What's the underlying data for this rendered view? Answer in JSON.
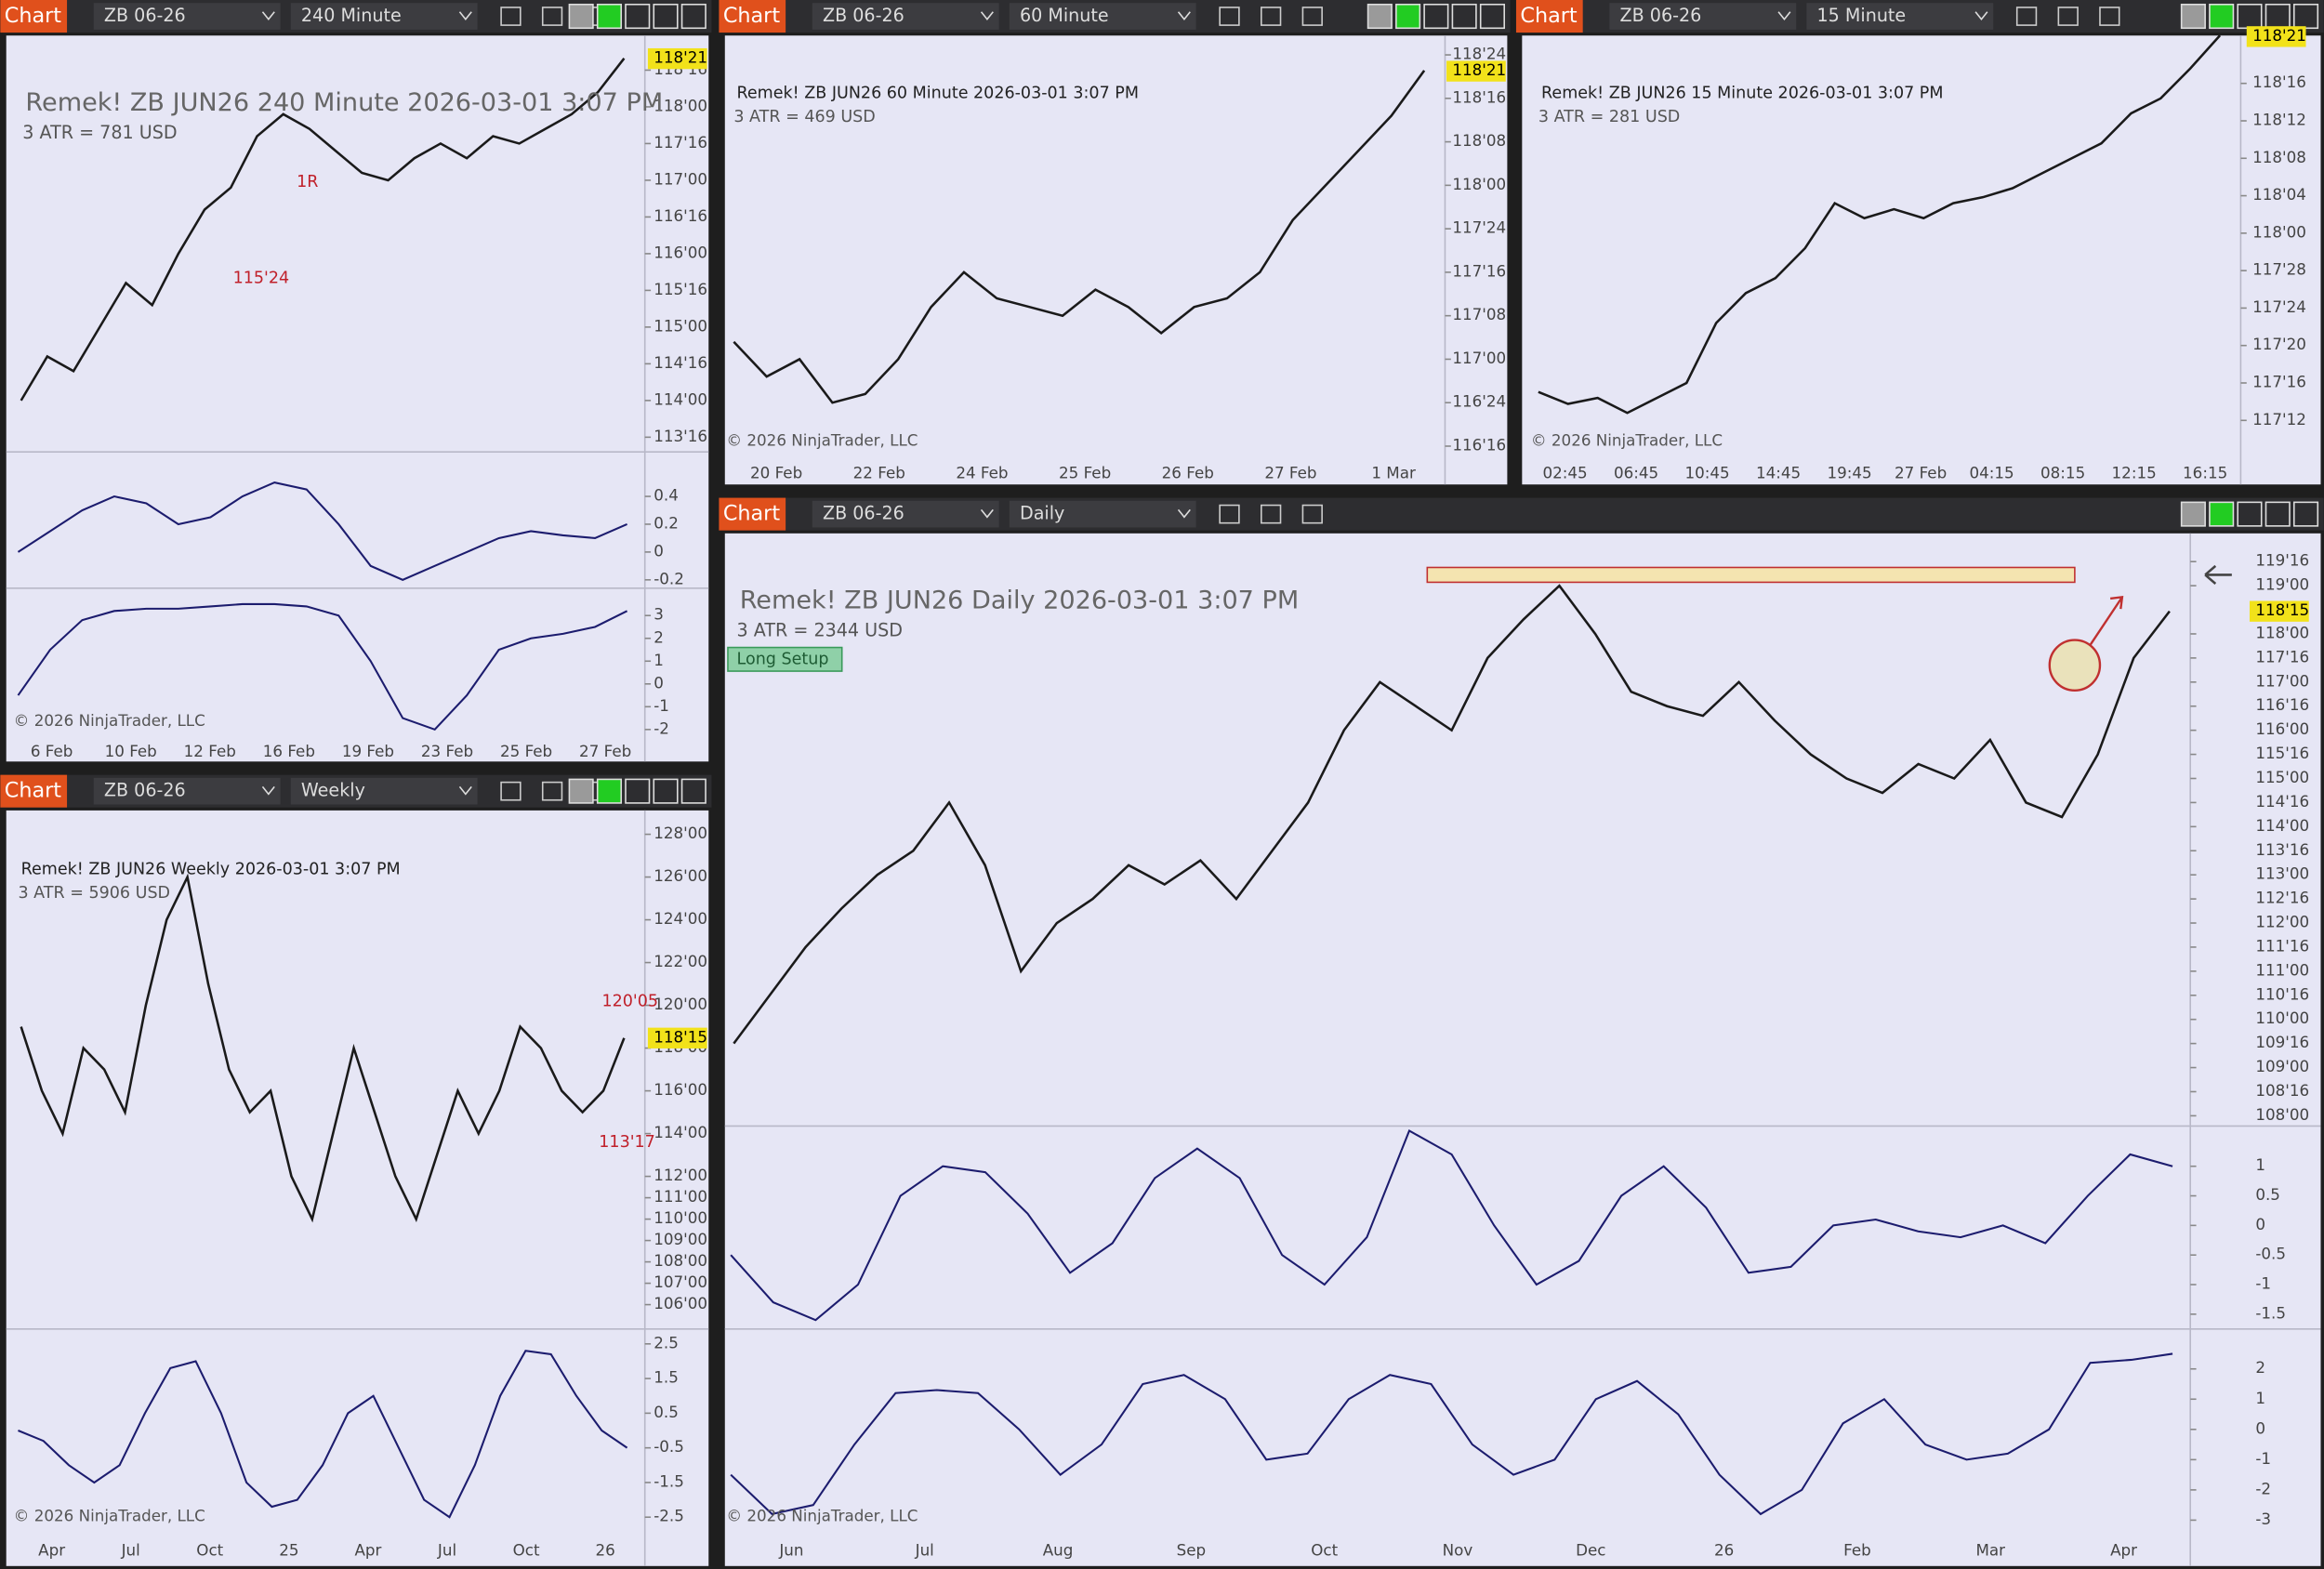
{
  "windows": [
    {
      "toolbar": {
        "button": "Chart",
        "instrument": "ZB 06-26",
        "interval": "240 Minute"
      },
      "title": "Remek!  ZB JUN26  240 Minute  2026-03-01 3:07 PM",
      "atr": "3 ATR = 781 USD",
      "ylim": [
        113.3,
        118.85
      ],
      "price_ticks": [
        {
          "value": 118.5,
          "label": "118'16"
        },
        {
          "value": 118.0,
          "label": "118'00"
        },
        {
          "value": 117.5,
          "label": "117'16"
        },
        {
          "value": 117.0,
          "label": "117'00"
        },
        {
          "value": 116.5,
          "label": "116'16"
        },
        {
          "value": 116.0,
          "label": "116'00"
        },
        {
          "value": 115.5,
          "label": "115'16"
        },
        {
          "value": 115.0,
          "label": "115'00"
        },
        {
          "value": 114.5,
          "label": "114'16"
        },
        {
          "value": 114.0,
          "label": "114'00"
        },
        {
          "value": 113.5,
          "label": "113'16"
        }
      ],
      "last_price": {
        "value": 118.65625,
        "label": "118'21"
      },
      "closes": [
        114.0,
        114.6,
        114.4,
        115.0,
        115.6,
        115.3,
        116.0,
        116.6,
        116.9,
        117.6,
        117.9,
        117.7,
        117.4,
        117.1,
        117.0,
        117.3,
        117.5,
        117.3,
        117.6,
        117.5,
        117.7,
        117.9,
        118.2,
        118.66
      ],
      "annotations": [
        "1R",
        "115'24"
      ],
      "panes": [
        {
          "ylim": [
            -0.26,
            0.72
          ],
          "yticks": [
            0.4,
            0.2,
            0,
            -0.2
          ],
          "values": [
            0.0,
            0.15,
            0.3,
            0.4,
            0.35,
            0.2,
            0.25,
            0.4,
            0.5,
            0.45,
            0.2,
            -0.1,
            -0.2,
            -0.1,
            0.0,
            0.1,
            0.15,
            0.12,
            0.1,
            0.2
          ]
        },
        {
          "ylim": [
            -2.3,
            4.2
          ],
          "yticks": [
            3,
            2,
            1,
            0,
            -1,
            -2
          ],
          "values": [
            -0.5,
            1.5,
            2.8,
            3.2,
            3.3,
            3.3,
            3.4,
            3.5,
            3.5,
            3.4,
            3.0,
            1.0,
            -1.5,
            -2.0,
            -0.5,
            1.5,
            2.0,
            2.2,
            2.5,
            3.2
          ]
        }
      ],
      "x_labels": [
        "6 Feb",
        "10 Feb",
        "12 Feb",
        "16 Feb",
        "19 Feb",
        "23 Feb",
        "25 Feb",
        "27 Feb"
      ],
      "copyright": "© 2026 NinjaTrader, LLC"
    },
    {
      "toolbar": {
        "button": "Chart",
        "instrument": "ZB 06-26",
        "interval": "60 Minute"
      },
      "title": "Remek!  ZB JUN26  60 Minute  2026-03-01 3:07 PM",
      "atr": "3 ATR = 469 USD",
      "ylim": [
        116.45,
        118.81
      ],
      "price_ticks": [
        {
          "value": 118.75,
          "label": "118'24"
        },
        {
          "value": 118.5,
          "label": "118'16"
        },
        {
          "value": 118.25,
          "label": "118'08"
        },
        {
          "value": 118.0,
          "label": "118'00"
        },
        {
          "value": 117.75,
          "label": "117'24"
        },
        {
          "value": 117.5,
          "label": "117'16"
        },
        {
          "value": 117.25,
          "label": "117'08"
        },
        {
          "value": 117.0,
          "label": "117'00"
        },
        {
          "value": 116.75,
          "label": "116'24"
        },
        {
          "value": 116.5,
          "label": "116'16"
        }
      ],
      "last_price": {
        "value": 118.65625,
        "label": "118'21"
      },
      "closes": [
        117.1,
        116.9,
        117.0,
        116.75,
        116.8,
        117.0,
        117.3,
        117.5,
        117.35,
        117.3,
        117.25,
        117.4,
        117.3,
        117.15,
        117.3,
        117.35,
        117.5,
        117.8,
        118.0,
        118.2,
        118.4,
        118.66
      ],
      "panes": [],
      "x_labels": [
        "20 Feb",
        "22 Feb",
        "24 Feb",
        "25 Feb",
        "26 Feb",
        "27 Feb",
        "1 Mar"
      ],
      "copyright": "© 2026 NinjaTrader, LLC"
    },
    {
      "toolbar": {
        "button": "Chart",
        "instrument": "ZB 06-26",
        "interval": "15 Minute"
      },
      "title": "Remek!  ZB JUN26  15 Minute  2026-03-01 3:07 PM",
      "atr": "3 ATR = 281 USD",
      "ylim": [
        117.26,
        118.63
      ],
      "price_ticks": [
        {
          "value": 118.5,
          "label": "118'16"
        },
        {
          "value": 118.375,
          "label": "118'12"
        },
        {
          "value": 118.25,
          "label": "118'08"
        },
        {
          "value": 118.125,
          "label": "118'04"
        },
        {
          "value": 118.0,
          "label": "118'00"
        },
        {
          "value": 117.875,
          "label": "117'28"
        },
        {
          "value": 117.75,
          "label": "117'24"
        },
        {
          "value": 117.625,
          "label": "117'20"
        },
        {
          "value": 117.5,
          "label": "117'16"
        },
        {
          "value": 117.375,
          "label": "117'12"
        }
      ],
      "last_price": {
        "value": 118.65625,
        "label": "118'21"
      },
      "closes": [
        117.47,
        117.43,
        117.45,
        117.4,
        117.45,
        117.5,
        117.7,
        117.8,
        117.85,
        117.95,
        118.1,
        118.05,
        118.08,
        118.05,
        118.1,
        118.12,
        118.15,
        118.2,
        118.25,
        118.3,
        118.4,
        118.45,
        118.55,
        118.66
      ],
      "panes": [],
      "x_labels": [
        "02:45",
        "06:45",
        "10:45",
        "14:45",
        "19:45",
        "27 Feb",
        "04:15",
        "08:15",
        "12:15",
        "16:15"
      ],
      "copyright": "© 2026 NinjaTrader, LLC"
    },
    {
      "toolbar": {
        "button": "Chart",
        "instrument": "ZB 06-26",
        "interval": "Weekly"
      },
      "title": "Remek!  ZB JUN26  Weekly  2026-03-01 3:07 PM",
      "atr": "3 ATR = 5906 USD",
      "ylim": [
        105.0,
        128.7
      ],
      "price_ticks": [
        {
          "value": 128,
          "label": "128'00"
        },
        {
          "value": 126,
          "label": "126'00"
        },
        {
          "value": 124,
          "label": "124'00"
        },
        {
          "value": 122,
          "label": "122'00"
        },
        {
          "value": 120,
          "label": "120'00"
        },
        {
          "value": 118,
          "label": "118'00"
        },
        {
          "value": 116,
          "label": "116'00"
        },
        {
          "value": 114,
          "label": "114'00"
        },
        {
          "value": 112,
          "label": "112'00"
        },
        {
          "value": 111,
          "label": "111'00"
        },
        {
          "value": 110,
          "label": "110'00"
        },
        {
          "value": 109,
          "label": "109'00"
        },
        {
          "value": 108,
          "label": "108'00"
        },
        {
          "value": 107,
          "label": "107'00"
        },
        {
          "value": 106,
          "label": "106'00"
        }
      ],
      "last_price": {
        "value": 118.46875,
        "label": "118'15"
      },
      "closes": [
        119,
        116,
        114,
        118,
        117,
        115,
        120,
        124,
        126,
        121,
        117,
        115,
        116,
        112,
        110,
        114,
        118,
        115,
        112,
        110,
        113,
        116,
        114,
        116,
        119,
        118,
        116,
        115,
        116,
        118.47
      ],
      "annotations": [
        "120'05",
        "113'17"
      ],
      "panes": [
        {
          "ylim": [
            -2.97,
            2.93
          ],
          "yticks": [
            2.5,
            1.5,
            0.5,
            -0.5,
            -1.5,
            -2.5
          ],
          "values": [
            0,
            -0.3,
            -1.0,
            -1.5,
            -1.0,
            0.5,
            1.8,
            2.0,
            0.5,
            -1.5,
            -2.2,
            -2.0,
            -1.0,
            0.5,
            1.0,
            -0.5,
            -2.0,
            -2.5,
            -1.0,
            1.0,
            2.3,
            2.2,
            1.0,
            0,
            -0.5
          ]
        }
      ],
      "x_labels": [
        "Apr",
        "Jul",
        "Oct",
        "25",
        "Apr",
        "Jul",
        "Oct",
        "26"
      ],
      "copyright": "© 2026 NinjaTrader, LLC"
    },
    {
      "toolbar": {
        "button": "Chart",
        "instrument": "ZB 06-26",
        "interval": "Daily"
      },
      "title": "Remek!  ZB JUN26  Daily  2026-03-01 3:07 PM",
      "atr": "3 ATR = 2344 USD",
      "setup": "Long Setup",
      "ylim": [
        107.88,
        119.84
      ],
      "price_ticks": [
        {
          "value": 119.5,
          "label": "119'16"
        },
        {
          "value": 119.0,
          "label": "119'00"
        },
        {
          "value": 118.0,
          "label": "118'00"
        },
        {
          "value": 117.5,
          "label": "117'16"
        },
        {
          "value": 117.0,
          "label": "117'00"
        },
        {
          "value": 116.5,
          "label": "116'16"
        },
        {
          "value": 116.0,
          "label": "116'00"
        },
        {
          "value": 115.5,
          "label": "115'16"
        },
        {
          "value": 115.0,
          "label": "115'00"
        },
        {
          "value": 114.5,
          "label": "114'16"
        },
        {
          "value": 114.0,
          "label": "114'00"
        },
        {
          "value": 113.5,
          "label": "113'16"
        },
        {
          "value": 113.0,
          "label": "113'00"
        },
        {
          "value": 112.5,
          "label": "112'16"
        },
        {
          "value": 112.0,
          "label": "112'00"
        },
        {
          "value": 111.5,
          "label": "111'16"
        },
        {
          "value": 111.0,
          "label": "111'00"
        },
        {
          "value": 110.5,
          "label": "110'16"
        },
        {
          "value": 110.0,
          "label": "110'00"
        },
        {
          "value": 109.5,
          "label": "109'16"
        },
        {
          "value": 109.0,
          "label": "109'00"
        },
        {
          "value": 108.5,
          "label": "108'16"
        },
        {
          "value": 108.0,
          "label": "108'00"
        }
      ],
      "last_price": {
        "value": 118.46875,
        "label": "118'15"
      },
      "closes": [
        109.5,
        110.5,
        111.5,
        112.3,
        113.0,
        113.5,
        114.5,
        113.2,
        111.0,
        112.0,
        112.5,
        113.2,
        112.8,
        113.3,
        112.5,
        113.5,
        114.5,
        116.0,
        117.0,
        116.5,
        116.0,
        117.5,
        118.3,
        119.0,
        118.0,
        116.8,
        116.5,
        116.3,
        117.0,
        116.2,
        115.5,
        115.0,
        114.7,
        115.3,
        115.0,
        115.8,
        114.5,
        114.2,
        115.5,
        117.5,
        118.47
      ],
      "panes": [
        {
          "ylim": [
            -1.7,
            1.68
          ],
          "yticks": [
            1,
            0.5,
            0,
            -0.5,
            -1,
            -1.5
          ],
          "values": [
            -0.5,
            -1.3,
            -1.6,
            -1.0,
            0.5,
            1.0,
            0.9,
            0.2,
            -0.8,
            -0.3,
            0.8,
            1.3,
            0.8,
            -0.5,
            -1.0,
            -0.2,
            1.6,
            1.2,
            0,
            -1.0,
            -0.6,
            0.5,
            1.0,
            0.3,
            -0.8,
            -0.7,
            0.0,
            0.1,
            -0.1,
            -0.2,
            0.0,
            -0.3,
            0.5,
            1.2,
            1.0
          ]
        },
        {
          "ylim": [
            -3.44,
            3.32
          ],
          "yticks": [
            2,
            1,
            0,
            -1,
            -2,
            -3
          ],
          "values": [
            -1.5,
            -2.8,
            -2.5,
            -0.5,
            1.2,
            1.3,
            1.2,
            0.0,
            -1.5,
            -0.5,
            1.5,
            1.8,
            1.0,
            -1.0,
            -0.8,
            1.0,
            1.8,
            1.5,
            -0.5,
            -1.5,
            -1.0,
            1.0,
            1.6,
            0.5,
            -1.5,
            -2.8,
            -2.0,
            0.2,
            1.0,
            -0.5,
            -1.0,
            -0.8,
            0.0,
            2.2,
            2.3,
            2.5
          ]
        }
      ],
      "x_labels": [
        "Jun",
        "Jul",
        "Aug",
        "Sep",
        "Oct",
        "Nov",
        "Dec",
        "26",
        "Feb",
        "Mar",
        "Apr"
      ],
      "copyright": "© 2026 NinjaTrader, LLC"
    }
  ]
}
